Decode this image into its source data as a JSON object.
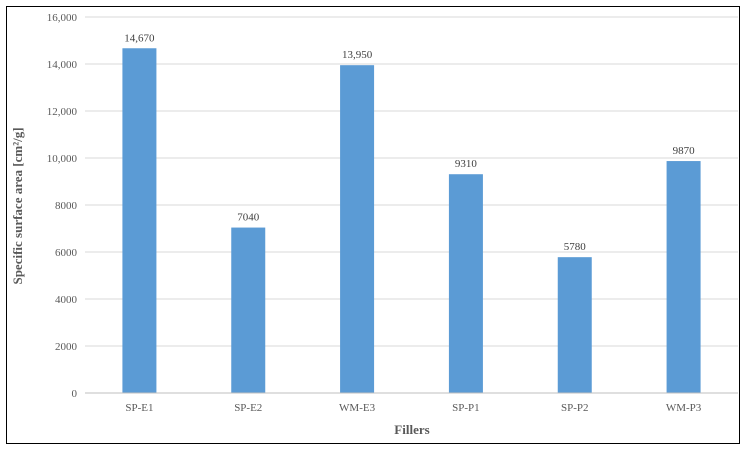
{
  "chart_data": {
    "type": "bar",
    "title": "",
    "xlabel": "Fillers",
    "ylabel": "Specific surface area [cm²/g]",
    "categories": [
      "SP-E1",
      "SP-E2",
      "WM-E3",
      "SP-P1",
      "SP-P2",
      "WM-P3"
    ],
    "values": [
      14670,
      7040,
      13950,
      9310,
      5780,
      9870
    ],
    "data_labels": [
      "14,670",
      "7040",
      "13,950",
      "9310",
      "5780",
      "9870"
    ],
    "ylim": [
      0,
      16000
    ],
    "y_ticks": [
      0,
      2000,
      4000,
      6000,
      8000,
      10000,
      12000,
      14000,
      16000
    ],
    "y_tick_labels": [
      "0",
      "2000",
      "4000",
      "6000",
      "8000",
      "10,000",
      "12,000",
      "14,000",
      "16,000"
    ],
    "grid": true,
    "legend": "none",
    "colors": {
      "bar": "#5b9bd5",
      "grid": "#d9d9d9",
      "axis": "#bfbfbf"
    }
  }
}
